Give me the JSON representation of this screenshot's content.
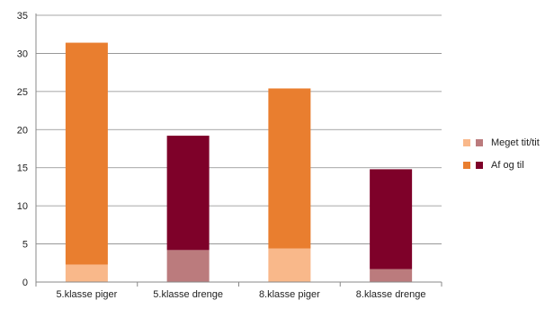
{
  "chart_data": {
    "type": "bar",
    "stacked": true,
    "categories": [
      "5.klasse piger",
      "5.klasse drenge",
      "8.klasse piger",
      "8.klasse drenge"
    ],
    "ylim": [
      0,
      35
    ],
    "yticks": [
      "0",
      "5",
      "10",
      "15",
      "20",
      "25",
      "30",
      "35"
    ],
    "grid": true,
    "legend_position": "right",
    "series": [
      {
        "name": "Meget tit/tit",
        "values": [
          2.3,
          4.2,
          4.4,
          1.7
        ]
      },
      {
        "name": "Af og til",
        "values": [
          29.1,
          15.0,
          21.0,
          13.1
        ]
      }
    ],
    "bar_colors": [
      [
        "#F9B88A",
        "#E97E2F"
      ],
      [
        "#BB7B7D",
        "#7E0129"
      ],
      [
        "#F9B88A",
        "#E97E2F"
      ],
      [
        "#BB7B7D",
        "#7E0129"
      ]
    ],
    "colors": {
      "axis": "#888888",
      "grid": "#8a8a8a"
    }
  },
  "legend": [
    {
      "label": "Meget tit/tit",
      "swatches": [
        "#F9B88A",
        "#BB7B7D"
      ]
    },
    {
      "label": "Af og til",
      "swatches": [
        "#E97E2F",
        "#7E0129"
      ]
    }
  ]
}
